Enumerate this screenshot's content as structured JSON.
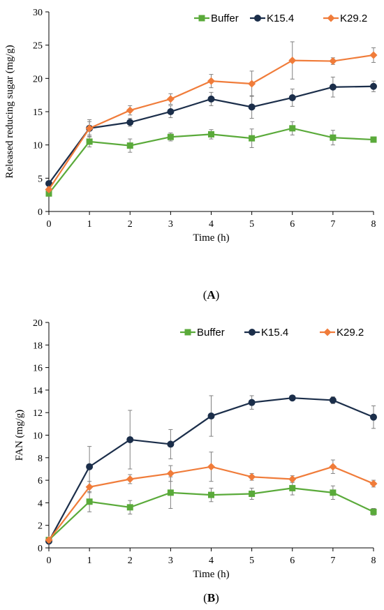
{
  "chart_data": [
    {
      "type": "line",
      "panel_label_open": "(",
      "panel_label": "A",
      "panel_label_close": ")",
      "xlabel": "Time (h)",
      "ylabel": "Released reducing sugar (mg/g)",
      "xlim": [
        0,
        8
      ],
      "ylim": [
        0,
        30
      ],
      "x_ticks": [
        0,
        1,
        2,
        3,
        4,
        5,
        6,
        7,
        8
      ],
      "y_ticks": [
        0,
        5,
        10,
        15,
        20,
        25,
        30
      ],
      "grid": false,
      "legend_position": "top-right",
      "series": [
        {
          "name": "Buffer",
          "color": "#5aaa3a",
          "marker": "square",
          "x": [
            0,
            1,
            2,
            3,
            4,
            5,
            6,
            7,
            8
          ],
          "y": [
            2.7,
            10.5,
            9.9,
            11.2,
            11.6,
            11.0,
            12.5,
            11.1,
            10.8
          ],
          "err": [
            0.3,
            0.8,
            1.0,
            0.6,
            0.7,
            1.4,
            1.0,
            1.1,
            0.4
          ]
        },
        {
          "name": "K15.4",
          "color": "#1b2e4a",
          "marker": "circle",
          "x": [
            0,
            1,
            2,
            3,
            4,
            5,
            6,
            7,
            8
          ],
          "y": [
            4.2,
            12.5,
            13.4,
            15.0,
            16.9,
            15.7,
            17.1,
            18.7,
            18.8
          ],
          "err": [
            0.3,
            1.0,
            0.6,
            0.9,
            1.0,
            1.7,
            1.3,
            1.5,
            0.8
          ]
        },
        {
          "name": "K29.2",
          "color": "#f07c3a",
          "marker": "diamond",
          "x": [
            0,
            1,
            2,
            3,
            4,
            5,
            6,
            7,
            8
          ],
          "y": [
            3.3,
            12.5,
            15.2,
            16.9,
            19.6,
            19.2,
            22.7,
            22.6,
            23.5
          ],
          "err": [
            0.3,
            1.3,
            0.7,
            0.8,
            1.0,
            1.9,
            2.8,
            0.5,
            1.1
          ]
        }
      ]
    },
    {
      "type": "line",
      "panel_label_open": "(",
      "panel_label": "B",
      "panel_label_close": ")",
      "xlabel": "Time (h)",
      "ylabel": "FAN (mg/g)",
      "xlim": [
        0,
        8
      ],
      "ylim": [
        0,
        20
      ],
      "x_ticks": [
        0,
        1,
        2,
        3,
        4,
        5,
        6,
        7,
        8
      ],
      "y_ticks": [
        0,
        2,
        4,
        6,
        8,
        10,
        12,
        14,
        16,
        18,
        20
      ],
      "grid": false,
      "legend_position": "top-right",
      "series": [
        {
          "name": "Buffer",
          "color": "#5aaa3a",
          "marker": "square",
          "x": [
            0,
            1,
            2,
            3,
            4,
            5,
            6,
            7,
            8
          ],
          "y": [
            0.7,
            4.1,
            3.6,
            4.9,
            4.7,
            4.8,
            5.3,
            4.9,
            3.2
          ],
          "err": [
            0.2,
            0.9,
            0.6,
            1.4,
            0.6,
            0.5,
            0.6,
            0.6,
            0.3
          ]
        },
        {
          "name": "K15.4",
          "color": "#1b2e4a",
          "marker": "circle",
          "x": [
            0,
            1,
            2,
            3,
            4,
            5,
            6,
            7,
            8
          ],
          "y": [
            0.6,
            7.2,
            9.6,
            9.2,
            11.7,
            12.9,
            13.3,
            13.1,
            11.6
          ],
          "err": [
            0.2,
            1.8,
            2.6,
            1.3,
            1.8,
            0.6,
            0.2,
            0.3,
            1.0
          ]
        },
        {
          "name": "K29.2",
          "color": "#f07c3a",
          "marker": "diamond",
          "x": [
            0,
            1,
            2,
            3,
            4,
            5,
            6,
            7,
            8
          ],
          "y": [
            0.7,
            5.4,
            6.1,
            6.6,
            7.2,
            6.3,
            6.1,
            7.2,
            5.7
          ],
          "err": [
            0.2,
            0.5,
            0.4,
            0.7,
            1.3,
            0.3,
            0.3,
            0.6,
            0.3
          ]
        }
      ]
    }
  ]
}
